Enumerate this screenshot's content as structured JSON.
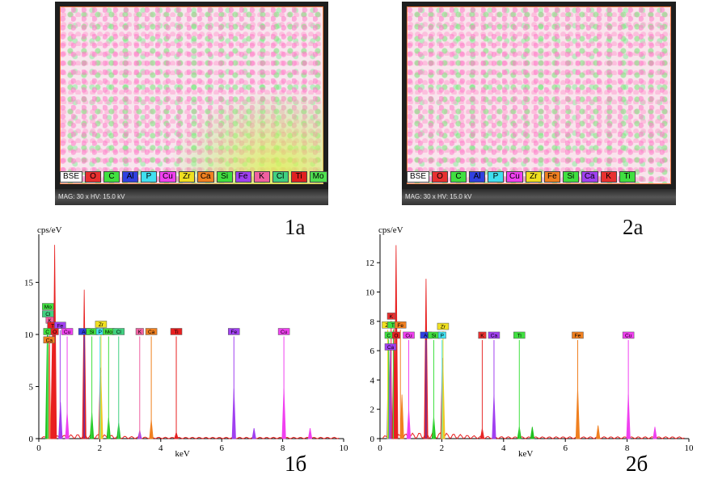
{
  "panels": [
    {
      "label": "1а",
      "footer": "MAG: 30 x   HV: 15.0 kV",
      "legend": [
        {
          "text": "BSE",
          "color": "#ffffff"
        },
        {
          "text": "O",
          "color": "#e83030"
        },
        {
          "text": "C",
          "color": "#40e040"
        },
        {
          "text": "Al",
          "color": "#3040e0"
        },
        {
          "text": "P",
          "color": "#40e0f0"
        },
        {
          "text": "Cu",
          "color": "#f040f0"
        },
        {
          "text": "Zr",
          "color": "#f0e020"
        },
        {
          "text": "Ca",
          "color": "#f08020"
        },
        {
          "text": "Si",
          "color": "#40e040"
        },
        {
          "text": "Fe",
          "color": "#a040f0"
        },
        {
          "text": "K",
          "color": "#f060a0"
        },
        {
          "text": "Cl",
          "color": "#40d080"
        },
        {
          "text": "Ti",
          "color": "#e02020"
        },
        {
          "text": "Mo",
          "color": "#50e050"
        }
      ]
    },
    {
      "label": "2а",
      "footer": "MAG: 30 x   HV: 15.0 kV",
      "legend": [
        {
          "text": "BSE",
          "color": "#ffffff"
        },
        {
          "text": "O",
          "color": "#e83030"
        },
        {
          "text": "C",
          "color": "#40e040"
        },
        {
          "text": "Al",
          "color": "#3040e0"
        },
        {
          "text": "P",
          "color": "#40e0f0"
        },
        {
          "text": "Cu",
          "color": "#f040f0"
        },
        {
          "text": "Zr",
          "color": "#f0e020"
        },
        {
          "text": "Fe",
          "color": "#f08020"
        },
        {
          "text": "Si",
          "color": "#40e040"
        },
        {
          "text": "Ca",
          "color": "#a040f0"
        },
        {
          "text": "K",
          "color": "#e83030"
        },
        {
          "text": "Ti",
          "color": "#40e040"
        }
      ]
    }
  ],
  "chart_data": [
    {
      "type": "line",
      "label": "1б",
      "ylabel": "cps/eV",
      "xlabel": "keV",
      "xlim": [
        0,
        10
      ],
      "ylim": [
        0,
        19
      ],
      "xticks": [
        0,
        2,
        4,
        6,
        8,
        10
      ],
      "yticks": [
        0,
        5,
        10,
        15
      ],
      "peaks": [
        {
          "x": 0.28,
          "y": 10.5,
          "color": "#20c020"
        },
        {
          "x": 0.34,
          "y": 9.5,
          "color": "#f08020"
        },
        {
          "x": 0.45,
          "y": 10.5,
          "color": "#e82020"
        },
        {
          "x": 0.52,
          "y": 18.6,
          "color": "#e82020"
        },
        {
          "x": 0.71,
          "y": 3.5,
          "color": "#a040f0"
        },
        {
          "x": 0.93,
          "y": 2.5,
          "color": "#f040f0"
        },
        {
          "x": 1.49,
          "y": 14.3,
          "color": "#e82020"
        },
        {
          "x": 1.74,
          "y": 2.5,
          "color": "#20c020"
        },
        {
          "x": 2.02,
          "y": 6.8,
          "color": "#e82020"
        },
        {
          "x": 2.04,
          "y": 6.0,
          "color": "#f0c020"
        },
        {
          "x": 2.29,
          "y": 2.0,
          "color": "#20c020"
        },
        {
          "x": 2.62,
          "y": 1.5,
          "color": "#20c020"
        },
        {
          "x": 3.31,
          "y": 0.8,
          "color": "#a040f0"
        },
        {
          "x": 3.69,
          "y": 1.8,
          "color": "#f08020"
        },
        {
          "x": 4.51,
          "y": 0.6,
          "color": "#e82020"
        },
        {
          "x": 6.4,
          "y": 4.8,
          "color": "#a040f0"
        },
        {
          "x": 7.06,
          "y": 1.0,
          "color": "#a040f0"
        },
        {
          "x": 8.04,
          "y": 4.8,
          "color": "#f040f0"
        },
        {
          "x": 8.9,
          "y": 1.0,
          "color": "#f040f0"
        }
      ],
      "markers": [
        {
          "el": "Mo",
          "x": 0.3,
          "y": 12.6,
          "color": "#40e040"
        },
        {
          "el": "Cl",
          "x": 0.3,
          "y": 11.9,
          "color": "#40d080"
        },
        {
          "el": "K",
          "x": 0.36,
          "y": 11.3,
          "color": "#f060a0"
        },
        {
          "el": "Ti",
          "x": 0.47,
          "y": 10.8,
          "color": "#e82020"
        },
        {
          "el": "Fe",
          "x": 0.7,
          "y": 10.8,
          "color": "#a040f0"
        },
        {
          "el": "C",
          "x": 0.28,
          "y": 10.2,
          "color": "#40e040"
        },
        {
          "el": "O",
          "x": 0.52,
          "y": 10.2,
          "color": "#e82020"
        },
        {
          "el": "Cu",
          "x": 0.93,
          "y": 10.2,
          "color": "#f040f0"
        },
        {
          "el": "Ca",
          "x": 0.34,
          "y": 9.4,
          "color": "#f08020"
        },
        {
          "el": "Al",
          "x": 1.49,
          "y": 10.2,
          "color": "#3040e0"
        },
        {
          "el": "Si",
          "x": 1.74,
          "y": 10.2,
          "color": "#40e040"
        },
        {
          "el": "Zr",
          "x": 2.04,
          "y": 10.9,
          "color": "#f0e020"
        },
        {
          "el": "P",
          "x": 2.01,
          "y": 10.2,
          "color": "#40e0f0"
        },
        {
          "el": "Mo",
          "x": 2.29,
          "y": 10.2,
          "color": "#40e040"
        },
        {
          "el": "Cl",
          "x": 2.62,
          "y": 10.2,
          "color": "#40d080"
        },
        {
          "el": "K",
          "x": 3.31,
          "y": 10.2,
          "color": "#f060a0"
        },
        {
          "el": "Ca",
          "x": 3.69,
          "y": 10.2,
          "color": "#f08020"
        },
        {
          "el": "Ti",
          "x": 4.51,
          "y": 10.2,
          "color": "#e82020"
        },
        {
          "el": "Fe",
          "x": 6.4,
          "y": 10.2,
          "color": "#a040f0"
        },
        {
          "el": "Cu",
          "x": 8.04,
          "y": 10.2,
          "color": "#f040f0"
        }
      ]
    },
    {
      "type": "line",
      "label": "2б",
      "ylabel": "cps/eV",
      "xlabel": "keV",
      "xlim": [
        0,
        10
      ],
      "ylim": [
        0,
        13.5
      ],
      "xticks": [
        0,
        2,
        4,
        6,
        8,
        10
      ],
      "yticks": [
        0,
        2,
        4,
        6,
        8,
        10,
        12
      ],
      "peaks": [
        {
          "x": 0.28,
          "y": 6.8,
          "color": "#808080"
        },
        {
          "x": 0.34,
          "y": 6.5,
          "color": "#a040f0"
        },
        {
          "x": 0.45,
          "y": 7.5,
          "color": "#e82020"
        },
        {
          "x": 0.52,
          "y": 13.2,
          "color": "#e82020"
        },
        {
          "x": 0.71,
          "y": 3.0,
          "color": "#f08020"
        },
        {
          "x": 0.93,
          "y": 2.0,
          "color": "#f040f0"
        },
        {
          "x": 1.49,
          "y": 10.9,
          "color": "#e82020"
        },
        {
          "x": 1.74,
          "y": 1.5,
          "color": "#20c020"
        },
        {
          "x": 2.02,
          "y": 5.5,
          "color": "#e82020"
        },
        {
          "x": 2.04,
          "y": 5.0,
          "color": "#f0c020"
        },
        {
          "x": 3.31,
          "y": 0.7,
          "color": "#e82020"
        },
        {
          "x": 3.69,
          "y": 3.0,
          "color": "#a040f0"
        },
        {
          "x": 4.51,
          "y": 0.8,
          "color": "#20c020"
        },
        {
          "x": 4.93,
          "y": 0.8,
          "color": "#20c020"
        },
        {
          "x": 6.4,
          "y": 3.5,
          "color": "#f08020"
        },
        {
          "x": 7.06,
          "y": 0.9,
          "color": "#f08020"
        },
        {
          "x": 8.04,
          "y": 3.0,
          "color": "#f040f0"
        },
        {
          "x": 8.9,
          "y": 0.8,
          "color": "#f040f0"
        }
      ],
      "markers": [
        {
          "el": "K",
          "x": 0.36,
          "y": 8.3,
          "color": "#e83030"
        },
        {
          "el": "Zr",
          "x": 0.25,
          "y": 7.7,
          "color": "#f0e020"
        },
        {
          "el": "Ti",
          "x": 0.43,
          "y": 7.7,
          "color": "#40e040"
        },
        {
          "el": "Fe",
          "x": 0.66,
          "y": 7.7,
          "color": "#f08020"
        },
        {
          "el": "C",
          "x": 0.28,
          "y": 7.0,
          "color": "#40e040"
        },
        {
          "el": "O",
          "x": 0.52,
          "y": 7.0,
          "color": "#e82020"
        },
        {
          "el": "Cu",
          "x": 0.93,
          "y": 7.0,
          "color": "#f040f0"
        },
        {
          "el": "Ca",
          "x": 0.34,
          "y": 6.2,
          "color": "#a040f0"
        },
        {
          "el": "Al",
          "x": 1.49,
          "y": 7.0,
          "color": "#3040e0"
        },
        {
          "el": "Si",
          "x": 1.74,
          "y": 7.0,
          "color": "#40e040"
        },
        {
          "el": "Zr",
          "x": 2.04,
          "y": 7.6,
          "color": "#f0e020"
        },
        {
          "el": "P",
          "x": 2.01,
          "y": 7.0,
          "color": "#40e0f0"
        },
        {
          "el": "K",
          "x": 3.31,
          "y": 7.0,
          "color": "#e83030"
        },
        {
          "el": "Ca",
          "x": 3.69,
          "y": 7.0,
          "color": "#a040f0"
        },
        {
          "el": "Ti",
          "x": 4.51,
          "y": 7.0,
          "color": "#40e040"
        },
        {
          "el": "Fe",
          "x": 6.4,
          "y": 7.0,
          "color": "#f08020"
        },
        {
          "el": "Cu",
          "x": 8.04,
          "y": 7.0,
          "color": "#f040f0"
        }
      ]
    }
  ]
}
